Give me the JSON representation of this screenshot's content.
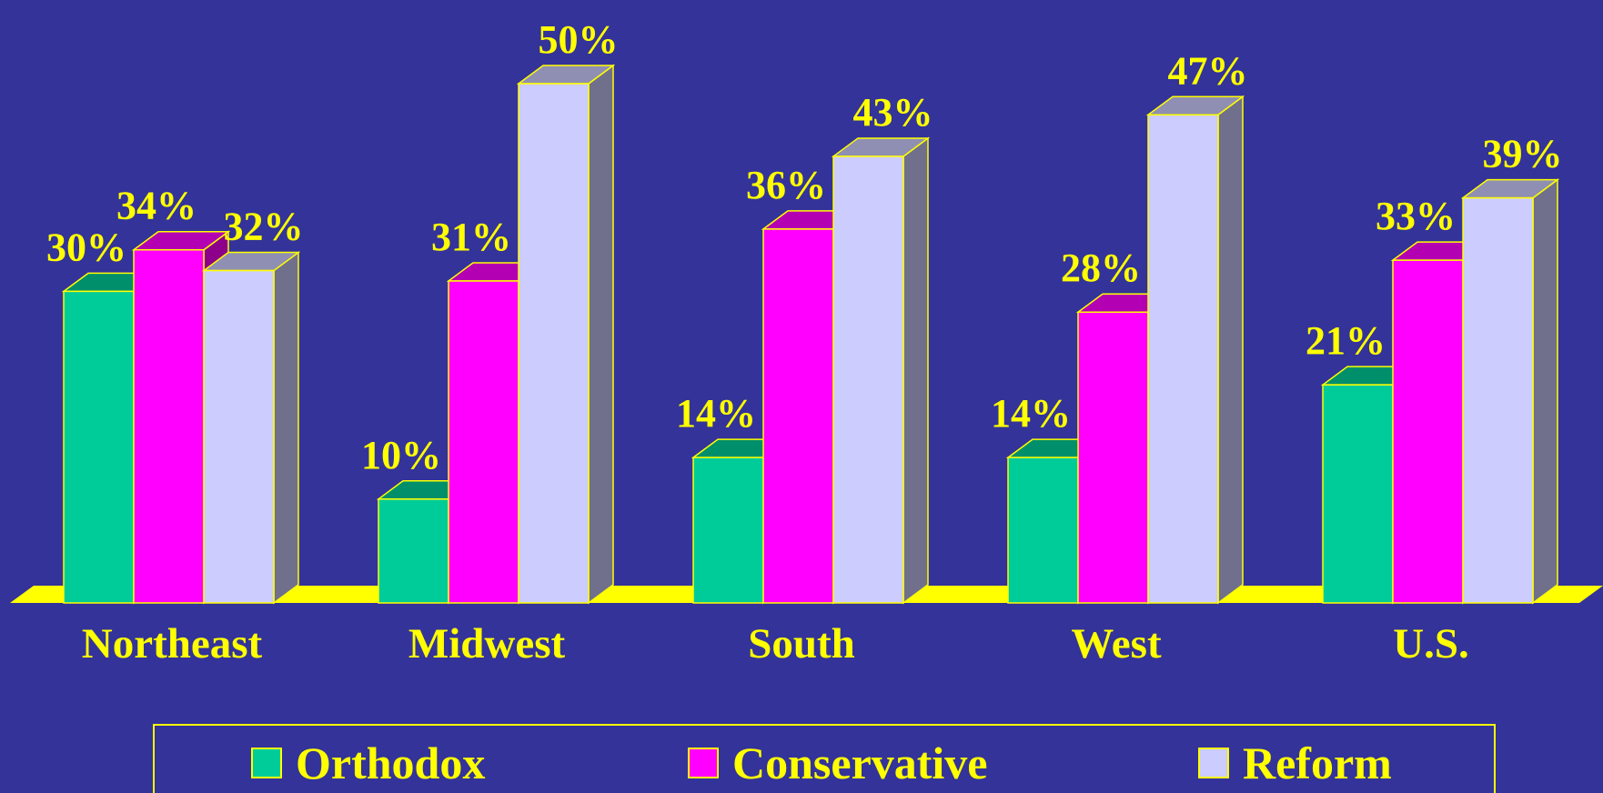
{
  "chart_data": {
    "type": "bar3d",
    "categories": [
      "Northeast",
      "Midwest",
      "South",
      "West",
      "U.S."
    ],
    "series": [
      {
        "name": "Orthodox",
        "color": "#00cc99",
        "values": [
          30,
          10,
          14,
          14,
          21
        ],
        "value_labels": [
          "30%",
          "10%",
          "14%",
          "14%",
          "21%"
        ]
      },
      {
        "name": "Conservative",
        "color": "#ff00ff",
        "values": [
          34,
          31,
          36,
          28,
          33
        ],
        "value_labels": [
          "34%",
          "31%",
          "36%",
          "28%",
          "33%"
        ]
      },
      {
        "name": "Reform",
        "color": "#ccccff",
        "values": [
          32,
          50,
          43,
          47,
          39
        ],
        "value_labels": [
          "32%",
          "50%",
          "43%",
          "47%",
          "39%"
        ]
      }
    ]
  }
}
